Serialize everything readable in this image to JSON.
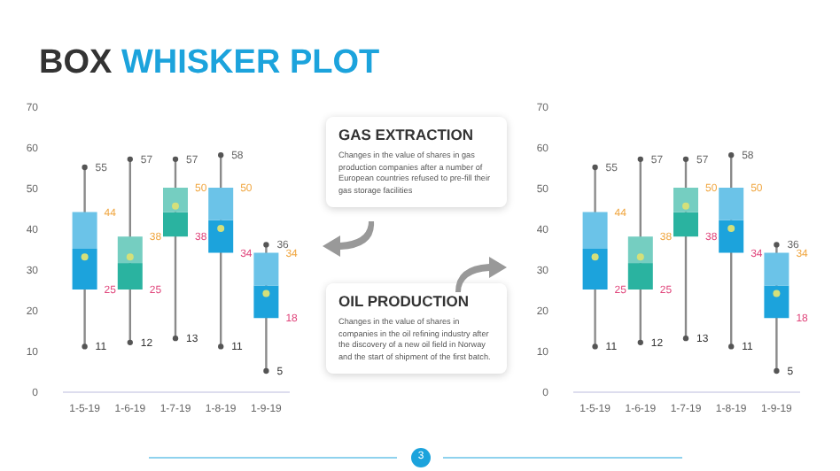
{
  "chart_data": [
    {
      "type": "box",
      "title": "BOX WHISKER PLOT",
      "categories": [
        "1-5-19",
        "1-6-19",
        "1-7-19",
        "1-8-19",
        "1-9-19"
      ],
      "boxes": [
        {
          "low": 11,
          "q1": 25,
          "median": 35,
          "q3": 44,
          "high": 55,
          "mean": 33
        },
        {
          "low": 12,
          "q1": 25,
          "median": 31.5,
          "q3": 38,
          "high": 57,
          "mean": 33
        },
        {
          "low": 13,
          "q1": 38,
          "median": 44,
          "q3": 50,
          "high": 57,
          "mean": 45.5
        },
        {
          "low": 11,
          "q1": 34,
          "median": 42,
          "q3": 50,
          "high": 58,
          "mean": 40
        },
        {
          "low": 5,
          "q1": 18,
          "median": 26,
          "q3": 34,
          "high": 36,
          "mean": 24
        }
      ],
      "colors": [
        "#1ca3dc",
        "#2ab3a0",
        "#2ab3a0",
        "#1ca3dc",
        "#1ca3dc"
      ],
      "ylim": [
        0,
        70
      ],
      "yticks": [
        0,
        10,
        20,
        30,
        40,
        50,
        60,
        70
      ],
      "annotations": [
        "3",
        {
          "text": "55",
          "x": "1-5-19",
          "y": 55
        },
        {
          "text": "44",
          "x": "1-5-19",
          "y": 44
        },
        {
          "text": "25",
          "x": "1-5-19",
          "y": 25
        },
        {
          "text": "11",
          "x": "1-5-19",
          "y": 11
        },
        {
          "text": "57",
          "x": "1-6-19",
          "y": 57
        },
        {
          "text": "38",
          "x": "1-6-19",
          "y": 38
        },
        {
          "text": "25",
          "x": "1-6-19",
          "y": 25
        },
        {
          "text": "12",
          "x": "1-6-19",
          "y": 12
        },
        {
          "text": "57",
          "x": "1-7-19",
          "y": 57
        },
        {
          "text": "50",
          "x": "1-7-19",
          "y": 50
        },
        {
          "text": "38",
          "x": "1-7-19",
          "y": 38
        },
        {
          "text": "13",
          "x": "1-7-19",
          "y": 13
        },
        {
          "text": "58",
          "x": "1-8-19",
          "y": 58
        },
        {
          "text": "50",
          "x": "1-8-19",
          "y": 50
        },
        {
          "text": "34",
          "x": "1-8-19",
          "y": 34
        },
        {
          "text": "11",
          "x": "1-8-19",
          "y": 11
        },
        {
          "text": "36",
          "x": "1-9-19",
          "y": 36
        },
        {
          "text": "34",
          "x": "1-9-19",
          "y": 34
        },
        {
          "text": "18",
          "x": "1-9-19",
          "y": 18
        },
        {
          "text": "5",
          "x": "1-9-19",
          "y": 5
        }
      ]
    },
    {
      "type": "other",
      "title": "GAS EXTRACTION",
      "annotations": [
        "Changes in the value of shares in gas production companies after a number of European countries refused to pre-fill their gas storage facilities"
      ]
    },
    {
      "type": "other",
      "title": "OIL PRODUCTION",
      "annotations": [
        "Changes in the value of shares in companies in the oil refining industry after the discovery of a new oil field in Norway and the start of shipment of the first batch."
      ]
    },
    {
      "type": "box",
      "categories": [
        "1-5-19",
        "1-6-19",
        "1-7-19",
        "1-8-19",
        "1-9-19"
      ],
      "boxes": [
        {
          "low": 11,
          "q1": 25,
          "median": 35,
          "q3": 44,
          "high": 55,
          "mean": 33
        },
        {
          "low": 12,
          "q1": 25,
          "median": 31.5,
          "q3": 38,
          "high": 57,
          "mean": 33
        },
        {
          "low": 13,
          "q1": 38,
          "median": 44,
          "q3": 50,
          "high": 57,
          "mean": 45.5
        },
        {
          "low": 11,
          "q1": 34,
          "median": 42,
          "q3": 50,
          "high": 58,
          "mean": 40
        },
        {
          "low": 5,
          "q1": 18,
          "median": 26,
          "q3": 34,
          "high": 36,
          "mean": 24
        }
      ],
      "colors": [
        "#1ca3dc",
        "#2ab3a0",
        "#2ab3a0",
        "#1ca3dc",
        "#1ca3dc"
      ],
      "ylim": [
        0,
        70
      ],
      "yticks": [
        0,
        10,
        20,
        30,
        40,
        50,
        60,
        70
      ],
      "annotations": [
        {
          "text": "55",
          "x": "1-5-19",
          "y": 55
        },
        {
          "text": "44",
          "x": "1-5-19",
          "y": 44
        },
        {
          "text": "25",
          "x": "1-5-19",
          "y": 25
        },
        {
          "text": "11",
          "x": "1-5-19",
          "y": 11
        },
        {
          "text": "57",
          "x": "1-6-19",
          "y": 57
        },
        {
          "text": "38",
          "x": "1-6-19",
          "y": 38
        },
        {
          "text": "25",
          "x": "1-6-19",
          "y": 25
        },
        {
          "text": "12",
          "x": "1-6-19",
          "y": 12
        },
        {
          "text": "57",
          "x": "1-7-19",
          "y": 57
        },
        {
          "text": "50",
          "x": "1-7-19",
          "y": 50
        },
        {
          "text": "38",
          "x": "1-7-19",
          "y": 38
        },
        {
          "text": "13",
          "x": "1-7-19",
          "y": 13
        },
        {
          "text": "58",
          "x": "1-8-19",
          "y": 58
        },
        {
          "text": "50",
          "x": "1-8-19",
          "y": 50
        },
        {
          "text": "34",
          "x": "1-8-19",
          "y": 34
        },
        {
          "text": "11",
          "x": "1-8-19",
          "y": 11
        },
        {
          "text": "36",
          "x": "1-9-19",
          "y": 36
        },
        {
          "text": "34",
          "x": "1-9-19",
          "y": 34
        },
        {
          "text": "18",
          "x": "1-9-19",
          "y": 18
        },
        {
          "text": "5",
          "x": "1-9-19",
          "y": 5
        }
      ]
    }
  ]
}
